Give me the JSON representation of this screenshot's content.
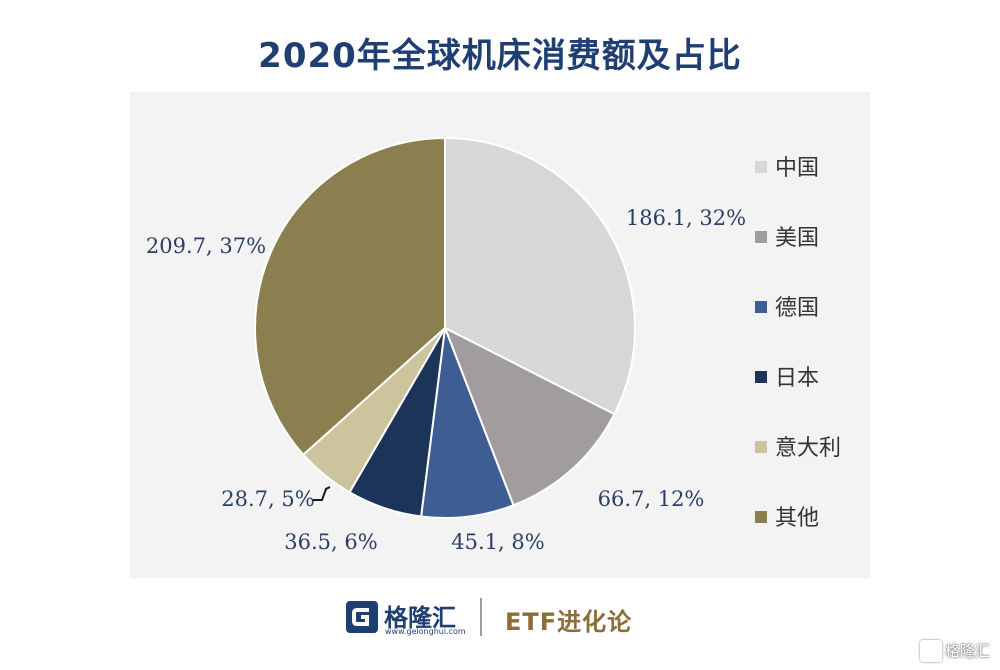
{
  "title": "2020年全球机床消费额及占比",
  "chart_data": {
    "type": "pie",
    "title": "2020年全球机床消费额及占比",
    "start_angle_deg": 0,
    "direction": "clockwise",
    "legend_position": "right",
    "series": [
      {
        "name": "中国",
        "value": 186.1,
        "percent": 32,
        "label": "186.1, 32%",
        "color": "#d7d6d9"
      },
      {
        "name": "美国",
        "value": 66.7,
        "percent": 12,
        "label": "66.7, 12%",
        "color": "#a19d9f"
      },
      {
        "name": "德国",
        "value": 45.1,
        "percent": 8,
        "label": "45.1, 8%",
        "color": "#3e5e93"
      },
      {
        "name": "日本",
        "value": 36.5,
        "percent": 6,
        "label": "36.5, 6%",
        "color": "#1c3458"
      },
      {
        "name": "意大利",
        "value": 28.7,
        "percent": 5,
        "label": "28.7, 5%",
        "color": "#cbc49d"
      },
      {
        "name": "其他",
        "value": 209.7,
        "percent": 37,
        "label": "209.7, 37%",
        "color": "#8c7f4f"
      }
    ]
  },
  "footer": {
    "logo_name": "格隆汇",
    "logo_url": "www.gelonghui.com",
    "brand": "ETF进化论"
  },
  "watermark": "格隆汇",
  "colors": {
    "title": "#1f3f73",
    "panel": "#f3f3f3",
    "label": "#2c3e66",
    "brand": "#8b6d36"
  }
}
